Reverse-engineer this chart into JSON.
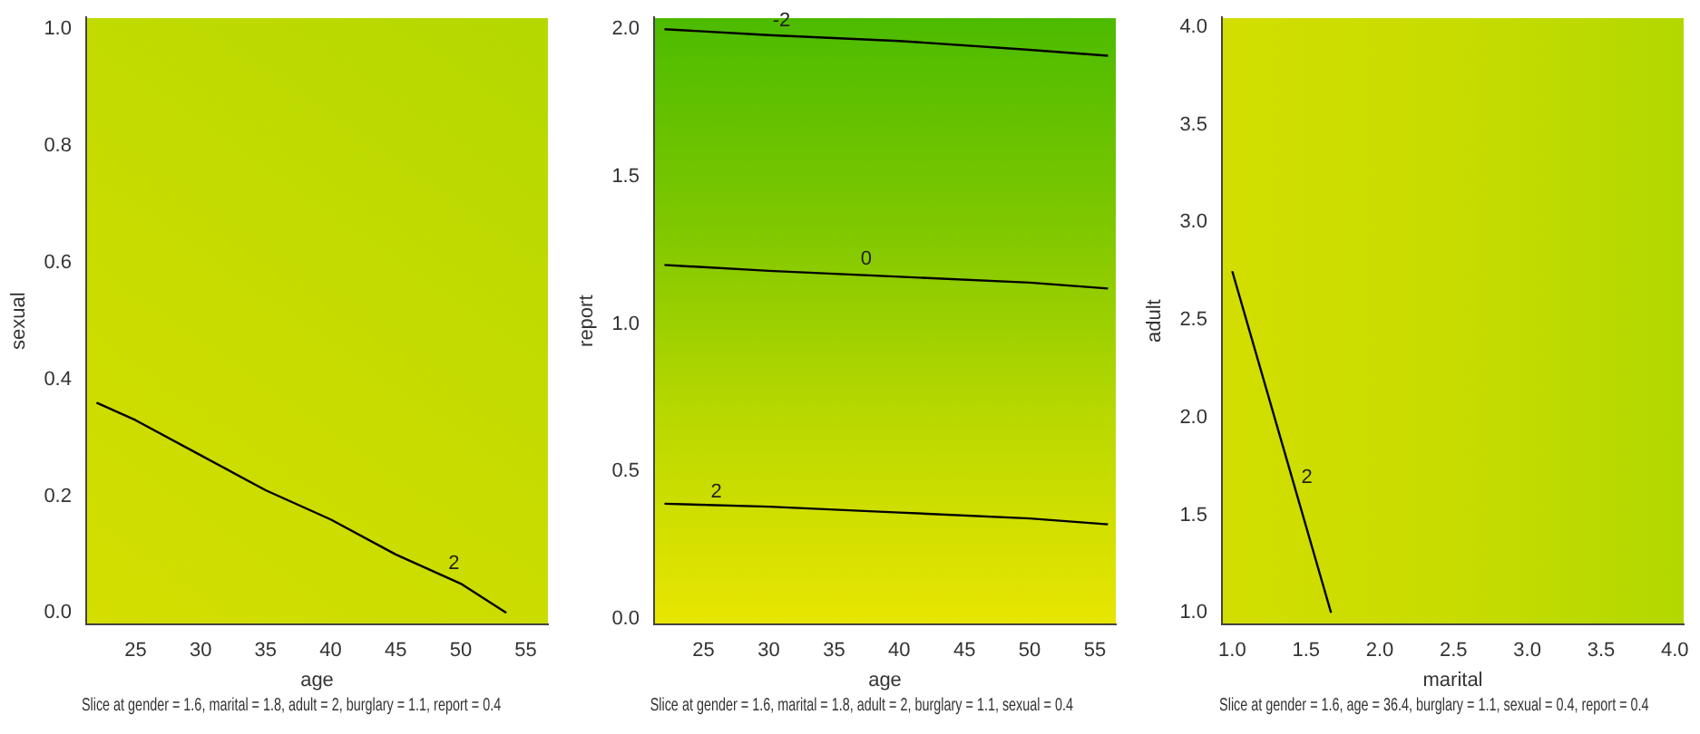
{
  "chart_data": [
    {
      "type": "line",
      "xlabel": "age",
      "ylabel": "sexual",
      "xlim": [
        21.2,
        56.7
      ],
      "ylim": [
        -0.02,
        1.02
      ],
      "xticks": [
        25,
        30,
        35,
        40,
        45,
        50,
        55
      ],
      "yticks": [
        {
          "value": 0,
          "label": "0.0"
        },
        {
          "value": 0.2,
          "label": "0.2"
        },
        {
          "value": 0.4,
          "label": "0.4"
        },
        {
          "value": 0.6,
          "label": "0.6"
        },
        {
          "value": 0.8,
          "label": "0.8"
        },
        {
          "value": 1,
          "label": "1.0"
        }
      ],
      "grid": false,
      "legend": false,
      "marker": "none",
      "series": [
        {
          "color": "#000000",
          "x": [
            22,
            25,
            30,
            35,
            40,
            45,
            50,
            53.5
          ],
          "values": [
            0.36,
            0.33,
            0.27,
            0.21,
            0.16,
            0.1,
            0.05,
            0.0
          ]
        }
      ],
      "annotations": [
        {
          "text": "2",
          "x": 48.5,
          "y": 0.06
        },
        "Slice at gender = 1.6, marital = 1.8, adult = 2, burglary = 1.1, report = 0.4"
      ]
    },
    {
      "type": "line",
      "xlabel": "age",
      "ylabel": "report",
      "xlim": [
        21.2,
        56.6
      ],
      "ylim": [
        -0.02,
        2.04
      ],
      "xticks": [
        25,
        30,
        35,
        40,
        45,
        50,
        55
      ],
      "yticks": [
        {
          "value": 0,
          "label": "0.0"
        },
        0.5,
        {
          "value": 1,
          "label": "1.0"
        },
        1.5,
        {
          "value": 2,
          "label": "2.0"
        }
      ],
      "grid": false,
      "legend": false,
      "marker": "none",
      "series": [
        {
          "color": "#000000",
          "x": [
            22,
            30,
            40,
            50,
            56
          ],
          "values": [
            2.0,
            1.98,
            1.96,
            1.93,
            1.91
          ]
        },
        {
          "color": "#000000",
          "x": [
            22,
            30,
            40,
            50,
            56
          ],
          "values": [
            1.2,
            1.18,
            1.16,
            1.14,
            1.12
          ]
        },
        {
          "color": "#000000",
          "x": [
            22,
            30,
            40,
            50,
            56
          ],
          "values": [
            0.39,
            0.38,
            0.36,
            0.34,
            0.32
          ]
        }
      ],
      "annotations": [
        {
          "text": "-2",
          "x": 30,
          "y": 1.98
        },
        {
          "text": "0",
          "x": 36.5,
          "y": 1.17
        },
        {
          "text": "2",
          "x": 25,
          "y": 0.38
        },
        "Slice at gender = 1.6, marital = 1.8, adult = 2, burglary = 1.1, sexual = 0.4"
      ]
    },
    {
      "type": "line",
      "xlabel": "marital",
      "ylabel": "adult",
      "xlim": [
        0.93,
        4.06
      ],
      "ylim": [
        0.94,
        4.05
      ],
      "xticks": [
        {
          "value": 1,
          "label": "1.0"
        },
        1.5,
        {
          "value": 2,
          "label": "2.0"
        },
        2.5,
        {
          "value": 3,
          "label": "3.0"
        },
        3.5,
        {
          "value": 4,
          "label": "4.0"
        }
      ],
      "yticks": [
        {
          "value": 1,
          "label": "1.0"
        },
        1.5,
        {
          "value": 2,
          "label": "2.0"
        },
        2.5,
        {
          "value": 3,
          "label": "3.0"
        },
        3.5,
        {
          "value": 4,
          "label": "4.0"
        }
      ],
      "grid": false,
      "legend": false,
      "marker": "none",
      "series": [
        {
          "color": "#000000",
          "x": [
            1.0,
            1.67
          ],
          "values": [
            2.75,
            1.0
          ]
        }
      ],
      "annotations": [
        {
          "text": "2",
          "x": 1.42,
          "y": 1.62
        },
        "Slice at gender = 1.6, age = 36.4, burglary = 1.1, sexual = 0.4, report = 0.4"
      ]
    }
  ]
}
